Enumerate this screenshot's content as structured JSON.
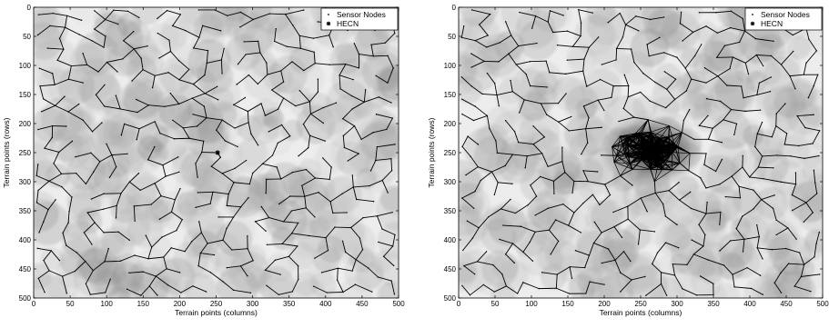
{
  "chart_data": [
    {
      "type": "scatter",
      "panel": "left",
      "title": "",
      "xlabel": "Terrain points (columns)",
      "ylabel": "Terrain points (rows)",
      "xlim": [
        0,
        500
      ],
      "ylim": [
        500,
        0
      ],
      "y_axis_reversed": true,
      "x_ticks": [
        0,
        50,
        100,
        150,
        200,
        250,
        300,
        350,
        400,
        450,
        500
      ],
      "y_ticks": [
        0,
        50,
        100,
        150,
        200,
        250,
        300,
        350,
        400,
        450,
        500
      ],
      "legend": {
        "placement": "top-right",
        "entries": [
          "Sensor Nodes",
          "HECN"
        ]
      },
      "background": "grayscale sensor-coverage field (overlapping circular sensing footprints)",
      "hecn": {
        "x": 252,
        "y": 250
      },
      "annotation": "Sensor nodes joined into multi-hop routing trees spread across the whole terrain; HECN near center (252, 250)"
    },
    {
      "type": "scatter",
      "panel": "right",
      "title": "",
      "xlabel": "Terrain points (columns)",
      "ylabel": "Terrain points (rows)",
      "xlim": [
        0,
        500
      ],
      "ylim": [
        500,
        0
      ],
      "y_axis_reversed": true,
      "x_ticks": [
        0,
        50,
        100,
        150,
        200,
        250,
        300,
        350,
        400,
        450,
        500
      ],
      "y_ticks": [
        0,
        50,
        100,
        150,
        200,
        250,
        300,
        350,
        400,
        450,
        500
      ],
      "legend": {
        "placement": "top-right",
        "entries": [
          "Sensor Nodes",
          "HECN"
        ]
      },
      "background": "grayscale sensor-coverage field with dense dark cluster around center",
      "hecn": {
        "x": 265,
        "y": 248
      },
      "annotation": "Sensor nodes concentrated around the HECN near (265, 248) with dense mesh connectivity"
    }
  ],
  "colors": {
    "lines": "#000000",
    "field_light": "#e8e8e8",
    "field_dark": "#4a4a4a",
    "axes": "#000000"
  }
}
